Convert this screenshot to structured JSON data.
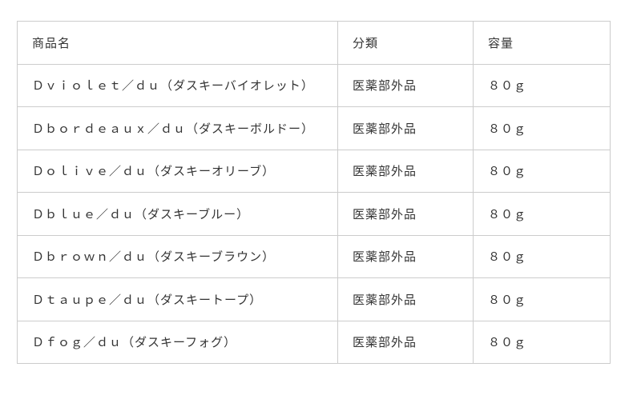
{
  "table": {
    "headers": {
      "product_name": "商品名",
      "category": "分類",
      "volume": "容量"
    },
    "rows": [
      {
        "name": "Ｄｖｉｏｌｅｔ／ｄｕ（ダスキーバイオレット）",
        "category": "医薬部外品",
        "volume": "８０ｇ"
      },
      {
        "name": "Ｄｂｏｒｄｅａｕｘ／ｄｕ（ダスキーボルドー）",
        "category": "医薬部外品",
        "volume": "８０ｇ"
      },
      {
        "name": "Ｄｏｌｉｖｅ／ｄｕ（ダスキーオリーブ）",
        "category": "医薬部外品",
        "volume": "８０ｇ"
      },
      {
        "name": "Ｄｂｌｕｅ／ｄｕ（ダスキーブルー）",
        "category": "医薬部外品",
        "volume": "８０ｇ"
      },
      {
        "name": "Ｄｂｒｏｗｎ／ｄｕ（ダスキーブラウン）",
        "category": "医薬部外品",
        "volume": "８０ｇ"
      },
      {
        "name": "Ｄｔａｕｐｅ／ｄｕ（ダスキートープ）",
        "category": "医薬部外品",
        "volume": "８０ｇ"
      },
      {
        "name": "Ｄｆｏｇ／ｄｕ（ダスキーフォグ）",
        "category": "医薬部外品",
        "volume": "８０ｇ"
      }
    ],
    "colors": {
      "border": "#cccccc",
      "text": "#333333",
      "background": "#ffffff"
    }
  }
}
